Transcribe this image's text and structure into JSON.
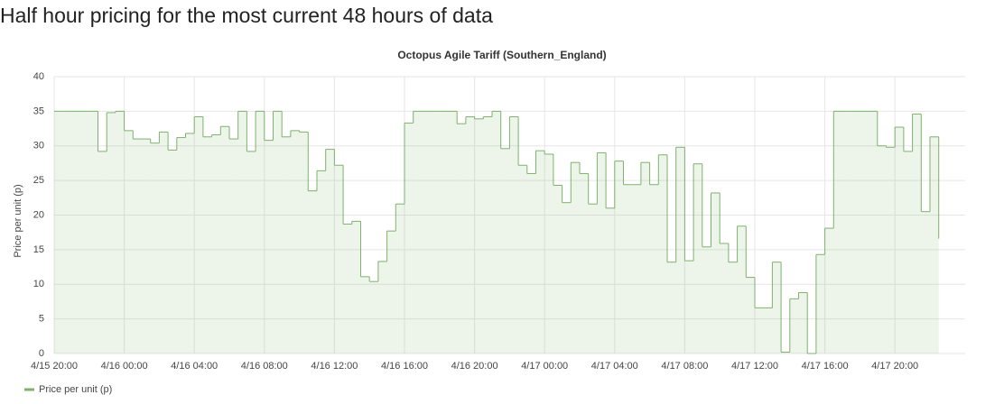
{
  "page_title": "Half hour pricing for the most current 48 hours of data",
  "chart_data": {
    "type": "step",
    "title": "Octopus Agile Tariff (Southern_England)",
    "ylabel": "Price per unit (p)",
    "x": [
      "4/15 20:00",
      "4/15 20:30",
      "4/15 21:00",
      "4/15 21:30",
      "4/15 22:00",
      "4/15 22:30",
      "4/15 23:00",
      "4/15 23:30",
      "4/16 00:00",
      "4/16 00:30",
      "4/16 01:00",
      "4/16 01:30",
      "4/16 02:00",
      "4/16 02:30",
      "4/16 03:00",
      "4/16 03:30",
      "4/16 04:00",
      "4/16 04:30",
      "4/16 05:00",
      "4/16 05:30",
      "4/16 06:00",
      "4/16 06:30",
      "4/16 07:00",
      "4/16 07:30",
      "4/16 08:00",
      "4/16 08:30",
      "4/16 09:00",
      "4/16 09:30",
      "4/16 10:00",
      "4/16 10:30",
      "4/16 11:00",
      "4/16 11:30",
      "4/16 12:00",
      "4/16 12:30",
      "4/16 13:00",
      "4/16 13:30",
      "4/16 14:00",
      "4/16 14:30",
      "4/16 15:00",
      "4/16 15:30",
      "4/16 16:00",
      "4/16 16:30",
      "4/16 17:00",
      "4/16 17:30",
      "4/16 18:00",
      "4/16 18:30",
      "4/16 19:00",
      "4/16 19:30",
      "4/16 20:00",
      "4/16 20:30",
      "4/16 21:00",
      "4/16 21:30",
      "4/16 22:00",
      "4/16 22:30",
      "4/16 23:00",
      "4/16 23:30",
      "4/17 00:00",
      "4/17 00:30",
      "4/17 01:00",
      "4/17 01:30",
      "4/17 02:00",
      "4/17 02:30",
      "4/17 03:00",
      "4/17 03:30",
      "4/17 04:00",
      "4/17 04:30",
      "4/17 05:00",
      "4/17 05:30",
      "4/17 06:00",
      "4/17 06:30",
      "4/17 07:00",
      "4/17 07:30",
      "4/17 08:00",
      "4/17 08:30",
      "4/17 09:00",
      "4/17 09:30",
      "4/17 10:00",
      "4/17 10:30",
      "4/17 11:00",
      "4/17 11:30",
      "4/17 12:00",
      "4/17 12:30",
      "4/17 13:00",
      "4/17 13:30",
      "4/17 14:00",
      "4/17 14:30",
      "4/17 15:00",
      "4/17 15:30",
      "4/17 16:00",
      "4/17 16:30",
      "4/17 17:00",
      "4/17 17:30",
      "4/17 18:00",
      "4/17 18:30",
      "4/17 19:00",
      "4/17 19:30",
      "4/17 20:00",
      "4/17 20:30",
      "4/17 21:00",
      "4/17 21:30",
      "4/17 22:00",
      "4/17 22:30"
    ],
    "series": [
      {
        "name": "Price per unit (p)",
        "color": "#7eb26d",
        "values": [
          35,
          35,
          35,
          35,
          35,
          29.2,
          34.8,
          35,
          32.2,
          31,
          31,
          30.4,
          32,
          29.4,
          31.2,
          31.8,
          34.2,
          31.3,
          31.6,
          32.8,
          31,
          35,
          29.2,
          35,
          30.8,
          35,
          31.3,
          32.2,
          32,
          23.5,
          26.4,
          29.5,
          27.2,
          18.7,
          19.1,
          11.1,
          10.4,
          13.3,
          17.7,
          21.6,
          33.3,
          35,
          35,
          35,
          35,
          35,
          33.2,
          34.2,
          33.9,
          34.2,
          35,
          29.6,
          34.2,
          27.2,
          26,
          29.3,
          28.8,
          24.3,
          21.8,
          27.6,
          26,
          21.6,
          29,
          21,
          27.8,
          24.4,
          24.4,
          27.6,
          24.4,
          28.7,
          13.2,
          29.8,
          13.4,
          27.4,
          15.4,
          23.2,
          15.9,
          13.2,
          18.4,
          11,
          6.6,
          6.6,
          13.2,
          0.2,
          7.9,
          8.8,
          0,
          14.3,
          18.1,
          35,
          35,
          35,
          35,
          35,
          30,
          29.8,
          32.7,
          29.2,
          34.6,
          20.5,
          31.3,
          16.6
        ]
      }
    ],
    "xticks": [
      "4/15 20:00",
      "4/16 00:00",
      "4/16 04:00",
      "4/16 08:00",
      "4/16 12:00",
      "4/16 16:00",
      "4/16 20:00",
      "4/17 00:00",
      "4/17 04:00",
      "4/17 08:00",
      "4/17 12:00",
      "4/17 16:00",
      "4/17 20:00"
    ],
    "ylim": [
      0,
      40
    ],
    "yticks": [
      0,
      5,
      10,
      15,
      20,
      25,
      30,
      35,
      40
    ],
    "grid": true,
    "legend": "bottom-left"
  }
}
